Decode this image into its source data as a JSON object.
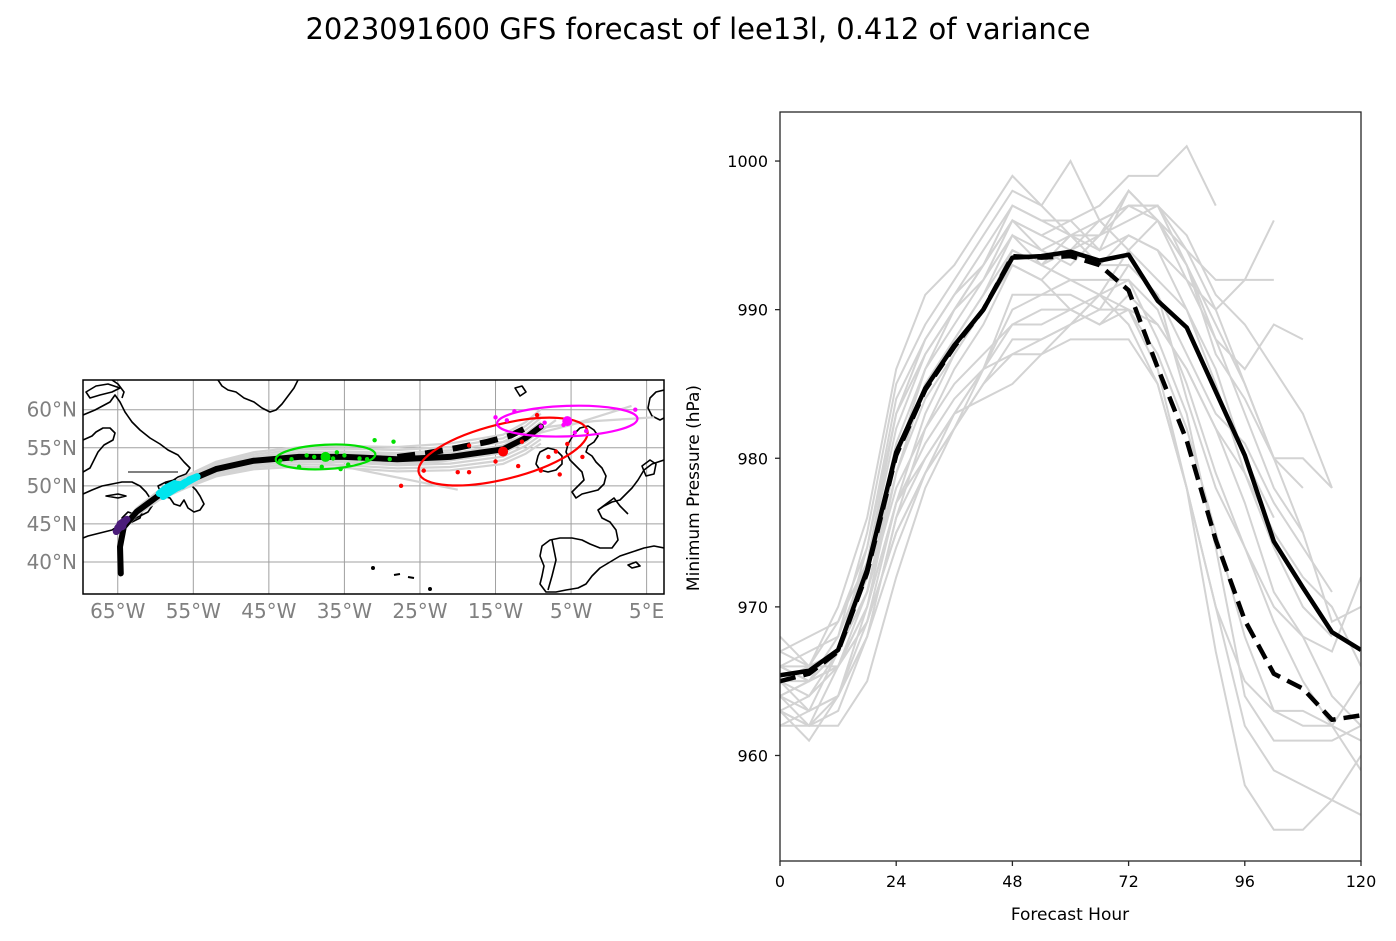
{
  "title": "2023091600 GFS forecast of lee13l, 0.412 of variance",
  "colors": {
    "ensemble": "#d3d3d3",
    "mean": "#000000",
    "tick_label_map": "#808080",
    "grid": "#a0a0a0",
    "cluster_colors": [
      "#4b1c7a",
      "#00e5ee",
      "#00e000",
      "#ff0000",
      "#ff00ff"
    ]
  },
  "chart_data": [
    {
      "type": "map",
      "name": "track-map",
      "projection": "PlateCarree",
      "xlim": [
        -69.6,
        7.3
      ],
      "ylim": [
        35.8,
        63.9
      ],
      "grid": true,
      "x_tick_values": [
        -65,
        -55,
        -45,
        -35,
        -25,
        -15,
        -5,
        5
      ],
      "x_tick_labels": [
        "65°W",
        "55°W",
        "45°W",
        "35°W",
        "25°W",
        "15°W",
        "5°W",
        "5°E"
      ],
      "y_tick_values": [
        60,
        55,
        50,
        45,
        40
      ],
      "y_tick_labels": [
        "60°N",
        "55°N",
        "50°N",
        "45°N",
        "40°N"
      ],
      "mean_track": {
        "lon": [
          -64.6,
          -64.7,
          -64.2,
          -62.5,
          -59.5,
          -56.0,
          -52.0,
          -47.0,
          -41.0,
          -35.0,
          -28.0,
          -21.0,
          -14.0,
          -11.0,
          -9.0
        ],
        "lat": [
          38.5,
          42.0,
          44.6,
          46.6,
          48.8,
          50.5,
          52.2,
          53.3,
          53.8,
          53.8,
          53.5,
          53.8,
          54.8,
          56.3,
          57.8
        ]
      },
      "alt_track_dashed": {
        "lon": [
          -28.0,
          -24.0,
          -20.0,
          -16.0,
          -13.0,
          -11.0
        ],
        "lat": [
          53.8,
          54.3,
          55.0,
          55.8,
          56.6,
          57.6
        ]
      },
      "clusters": [
        {
          "hour": 24,
          "color_index": 0,
          "center": [
            -64.5,
            44.8
          ],
          "points": [
            [
              -65.0,
              44.5
            ],
            [
              -64.2,
              45.3
            ],
            [
              -64.7,
              45.0
            ],
            [
              -63.8,
              45.6
            ],
            [
              -65.2,
              44.0
            ]
          ]
        },
        {
          "hour": 48,
          "color_index": 1,
          "center": [
            -57.0,
            50.0
          ],
          "points": [
            [
              -59.5,
              49.0
            ],
            [
              -58.5,
              49.8
            ],
            [
              -57.5,
              50.3
            ],
            [
              -56.5,
              50.0
            ],
            [
              -55.5,
              50.8
            ],
            [
              -54.5,
              51.2
            ],
            [
              -58.0,
              49.3
            ],
            [
              -56.0,
              50.5
            ],
            [
              -59.0,
              48.6
            ]
          ]
        },
        {
          "hour": 72,
          "color_index": 2,
          "center": [
            -37.5,
            53.8
          ],
          "ellipse": {
            "rx_deg": 6.6,
            "ry_deg": 1.6,
            "angle": -3
          },
          "points": [
            [
              -43.5,
              53.3
            ],
            [
              -41.0,
              52.5
            ],
            [
              -39.0,
              53.8
            ],
            [
              -37.5,
              53.9
            ],
            [
              -36.5,
              53.6
            ],
            [
              -35.0,
              54.0
            ],
            [
              -34.5,
              52.8
            ],
            [
              -33.0,
              53.6
            ],
            [
              -32.0,
              53.5
            ],
            [
              -31.0,
              56.0
            ],
            [
              -28.5,
              55.8
            ],
            [
              -29.0,
              53.5
            ],
            [
              -40.0,
              54.0
            ],
            [
              -38.0,
              52.5
            ],
            [
              -36.0,
              54.4
            ],
            [
              -42.0,
              53.5
            ],
            [
              -35.5,
              52.2
            ]
          ]
        },
        {
          "hour": 96,
          "color_index": 3,
          "center": [
            -14.0,
            54.5
          ],
          "ellipse": {
            "rx_deg": 11.5,
            "ry_deg": 3.6,
            "angle": -14
          },
          "points": [
            [
              -24.5,
              52.0
            ],
            [
              -20.0,
              51.8
            ],
            [
              -18.5,
              51.8
            ],
            [
              -15.0,
              53.2
            ],
            [
              -12.0,
              52.6
            ],
            [
              -9.0,
              52.0
            ],
            [
              -8.0,
              53.8
            ],
            [
              -7.0,
              54.5
            ],
            [
              -5.5,
              55.5
            ],
            [
              -11.5,
              55.8
            ],
            [
              -9.5,
              59.3
            ],
            [
              -18.5,
              55.3
            ],
            [
              -27.5,
              50.0
            ],
            [
              -3.5,
              53.8
            ],
            [
              -6.5,
              51.5
            ]
          ]
        },
        {
          "hour": 120,
          "color_index": 4,
          "center": [
            -5.5,
            58.5
          ],
          "ellipse": {
            "rx_deg": 9.3,
            "ry_deg": 2.0,
            "angle": -2
          },
          "points": [
            [
              -15.0,
              59.0
            ],
            [
              -12.5,
              59.8
            ],
            [
              -8.5,
              58.3
            ],
            [
              -6.0,
              58.0
            ],
            [
              -4.5,
              57.0
            ],
            [
              -13.5,
              58.6
            ],
            [
              -3.0,
              57.2
            ],
            [
              3.5,
              60.0
            ],
            [
              -9.0,
              57.8
            ]
          ]
        }
      ]
    },
    {
      "type": "line",
      "name": "pressure-chart",
      "xlabel": "Forecast Hour",
      "ylabel": "Minimum Pressure (hPa)",
      "xlim": [
        0,
        120
      ],
      "ylim": [
        952.9,
        1003.3
      ],
      "x_ticks": [
        0,
        24,
        48,
        72,
        96,
        120
      ],
      "y_ticks": [
        960,
        970,
        980,
        990,
        1000
      ],
      "grid": false,
      "x": [
        0,
        6,
        12,
        18,
        24,
        30,
        36,
        42,
        48,
        54,
        60,
        66,
        72,
        78,
        84,
        90,
        96,
        102,
        108,
        114,
        120
      ],
      "series": [
        {
          "name": "mean",
          "style": "solid",
          "values": [
            965.4,
            965.7,
            967.1,
            972.5,
            980.4,
            984.7,
            987.6,
            990.0,
            993.5,
            993.6,
            993.9,
            993.3,
            993.7,
            990.6,
            988.8,
            984.5,
            980.2,
            974.4,
            971.3,
            968.3,
            967.1
          ]
        },
        {
          "name": "cluster-mean",
          "style": "dashed",
          "values": [
            965.0,
            965.5,
            967.0,
            972.3,
            980.2,
            984.6,
            987.5,
            990.0,
            993.6,
            993.5,
            993.6,
            993.0,
            991.3,
            986.1,
            981.2,
            974.5,
            969.1,
            965.5,
            964.5,
            962.4,
            962.7
          ]
        }
      ],
      "ensemble": [
        [
          968,
          966,
          970,
          976,
          986,
          991,
          993,
          996,
          999,
          997,
          995,
          995,
          998,
          996,
          993,
          989,
          985,
          980,
          978
        ],
        [
          966,
          965,
          968,
          975,
          985,
          989,
          992,
          995,
          998,
          997,
          1000,
          996,
          994,
          992,
          990,
          986,
          980,
          976
        ],
        [
          964,
          963,
          967,
          974,
          984,
          988,
          991,
          994,
          997,
          996,
          996,
          997,
          999,
          999,
          1001,
          997
        ],
        [
          967,
          968,
          969,
          974,
          983,
          988,
          991,
          993,
          996,
          995,
          996,
          994,
          998,
          996,
          994,
          992,
          992,
          996
        ],
        [
          963,
          962,
          966,
          971,
          980,
          986,
          989,
          992,
          995,
          994,
          993,
          995,
          997,
          996,
          992,
          990,
          992,
          992
        ],
        [
          965,
          964,
          967,
          972,
          981,
          986,
          990,
          993,
          996,
          995,
          994,
          995,
          996,
          997,
          993,
          987,
          984,
          980,
          975
        ],
        [
          963,
          961,
          964,
          970,
          979,
          985,
          988,
          991,
          994,
          993,
          995,
          994,
          995,
          994,
          990,
          985,
          979,
          974,
          970,
          968
        ],
        [
          966,
          967,
          968,
          973,
          982,
          987,
          990,
          993,
          997,
          996,
          995,
          993,
          995,
          994,
          992,
          988,
          986,
          989,
          988
        ],
        [
          962,
          962,
          963,
          968,
          976,
          982,
          986,
          989,
          993,
          992,
          994,
          993,
          993,
          991,
          987,
          983,
          981,
          977,
          974,
          971
        ],
        [
          964,
          965,
          967,
          971,
          980,
          985,
          988,
          991,
          995,
          993,
          994,
          996,
          997,
          997,
          995,
          991,
          989,
          986,
          983,
          978
        ],
        [
          967,
          966,
          969,
          973,
          983,
          987,
          990,
          992,
          996,
          994,
          995,
          996,
          997,
          997,
          994,
          990,
          985,
          980,
          980,
          978
        ],
        [
          965,
          963,
          964,
          969,
          977,
          983,
          987,
          990,
          994,
          993,
          992,
          991,
          994,
          996,
          993,
          988,
          983,
          978,
          975,
          969,
          970
        ],
        [
          966,
          965,
          967,
          971,
          979,
          984,
          987,
          990,
          993,
          992,
          990,
          989,
          991,
          989,
          986,
          982,
          977,
          971,
          968,
          967,
          972
        ],
        [
          964,
          962,
          962,
          965,
          972,
          978,
          982,
          986,
          989,
          989,
          990,
          989,
          990,
          989,
          986,
          982,
          979,
          975,
          972,
          970,
          966
        ],
        [
          963,
          964,
          966,
          969,
          975,
          979,
          982,
          985,
          988,
          988,
          989,
          991,
          992,
          990,
          985,
          979,
          974,
          970,
          968,
          964,
          962
        ],
        [
          962,
          963,
          964,
          968,
          974,
          979,
          982,
          985,
          987,
          988,
          989,
          990,
          993,
          991,
          984,
          978,
          974,
          969,
          965,
          962,
          959
        ],
        [
          965,
          966,
          966,
          970,
          977,
          981,
          984,
          986,
          987,
          987,
          988,
          988,
          988,
          985,
          978,
          970,
          965,
          963,
          963,
          962,
          961
        ],
        [
          964,
          965,
          966,
          969,
          975,
          979,
          983,
          984,
          985,
          987,
          989,
          991,
          990,
          986,
          978,
          970,
          962,
          959,
          958,
          957,
          960
        ],
        [
          966,
          966,
          967,
          971,
          978,
          982,
          985,
          987,
          989,
          990,
          990,
          991,
          989,
          985,
          978,
          967,
          958,
          955,
          955,
          957,
          956
        ],
        [
          963,
          962,
          964,
          968,
          976,
          980,
          983,
          986,
          991,
          991,
          992,
          992,
          992,
          988,
          983,
          974,
          964,
          961,
          961,
          961,
          962
        ],
        [
          965,
          965,
          966,
          970,
          977,
          980,
          983,
          986,
          990,
          991,
          991,
          990,
          990,
          987,
          982,
          975,
          968,
          963,
          962,
          962,
          965
        ]
      ]
    }
  ]
}
